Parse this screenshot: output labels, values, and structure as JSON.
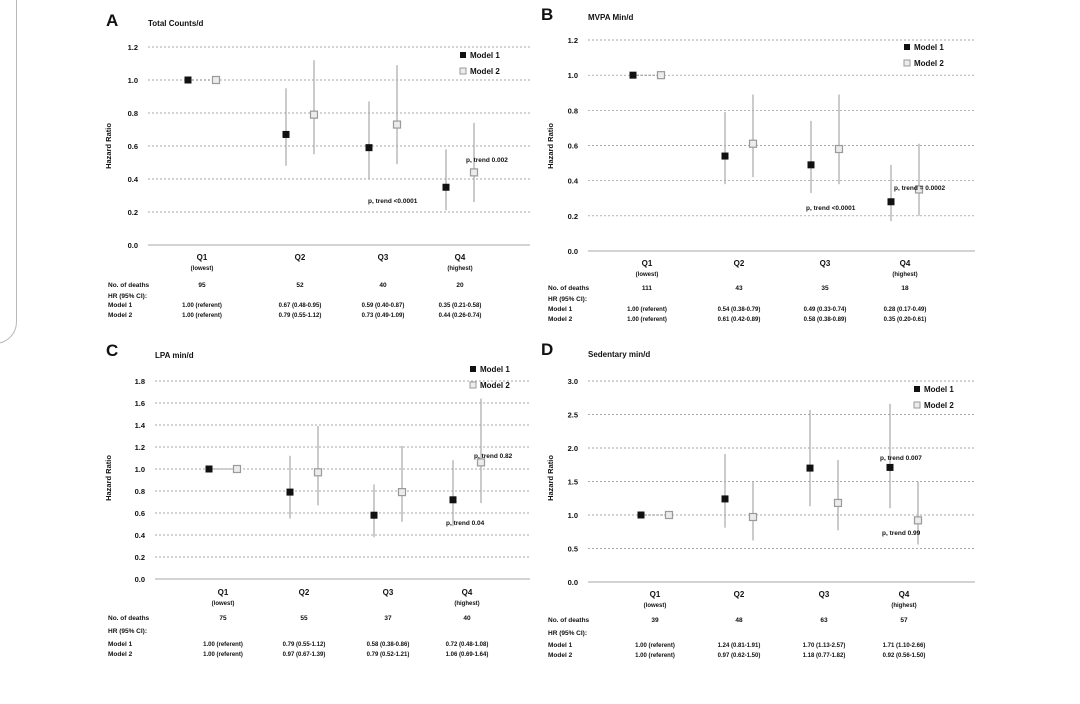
{
  "row_labels": {
    "deaths": "No. of deaths",
    "hr_header": "HR (95% CI):",
    "model1": "Model 1",
    "model2": "Model 2"
  },
  "ylabel": "Hazard Ratio",
  "categories": [
    {
      "name": "Q1",
      "sub": "(lowest)"
    },
    {
      "name": "Q2",
      "sub": ""
    },
    {
      "name": "Q3",
      "sub": ""
    },
    {
      "name": "Q4",
      "sub": "(highest)"
    }
  ],
  "legend": [
    "Model 1",
    "Model 2"
  ],
  "colors": {
    "model1": "#111111",
    "model2": "#9a9a9a",
    "ci": "#a8a8a8",
    "grid": "#8a8a8a"
  },
  "chart_data": [
    {
      "panel": "A",
      "title": "Total Counts/d",
      "type": "scatter",
      "ylim": [
        0,
        1.2
      ],
      "yticks": [
        "0.0",
        "0.2",
        "0.4",
        "0.6",
        "0.8",
        "1.0",
        "1.2"
      ],
      "legend_position": "top-right",
      "series": [
        {
          "name": "Model 1",
          "values": [
            1.0,
            0.67,
            0.59,
            0.35
          ],
          "lower": [
            1.0,
            0.48,
            0.4,
            0.21
          ],
          "upper": [
            1.0,
            0.95,
            0.87,
            0.58
          ]
        },
        {
          "name": "Model 2",
          "values": [
            1.0,
            0.79,
            0.73,
            0.44
          ],
          "lower": [
            1.0,
            0.55,
            0.49,
            0.26
          ],
          "upper": [
            1.0,
            1.12,
            1.09,
            0.74
          ]
        }
      ],
      "annotations": [
        "p, trend <0.0001",
        "p, trend 0.002"
      ],
      "deaths": [
        "95",
        "52",
        "40",
        "20"
      ],
      "model1_text": [
        "1.00 (referent)",
        "0.67 (0.48-0.95)",
        "0.59 (0.40-0.87)",
        "0.35 (0.21-0.58)"
      ],
      "model2_text": [
        "1.00 (referent)",
        "0.79 (0.55-1.12)",
        "0.73 (0.49-1.09)",
        "0.44 (0.26-0.74)"
      ]
    },
    {
      "panel": "B",
      "title": "MVPA Min/d",
      "type": "scatter",
      "ylim": [
        0,
        1.2
      ],
      "yticks": [
        "0.0",
        "0.2",
        "0.4",
        "0.6",
        "0.8",
        "1.0",
        "1.2"
      ],
      "legend_position": "top-right",
      "series": [
        {
          "name": "Model 1",
          "values": [
            1.0,
            0.54,
            0.49,
            0.28
          ],
          "lower": [
            1.0,
            0.38,
            0.33,
            0.17
          ],
          "upper": [
            1.0,
            0.79,
            0.74,
            0.49
          ]
        },
        {
          "name": "Model 2",
          "values": [
            1.0,
            0.61,
            0.58,
            0.35
          ],
          "lower": [
            1.0,
            0.42,
            0.38,
            0.2
          ],
          "upper": [
            1.0,
            0.89,
            0.89,
            0.61
          ]
        }
      ],
      "annotations": [
        "p, trend <0.0001",
        "p, trend = 0.0002"
      ],
      "deaths": [
        "111",
        "43",
        "35",
        "18"
      ],
      "model1_text": [
        "1.00 (referent)",
        "0.54 (0.38-0.79)",
        "0.49 (0.33-0.74)",
        "0.28 (0.17-0.49)"
      ],
      "model2_text": [
        "1.00 (referent)",
        "0.61 (0.42-0.89)",
        "0.58 (0.38-0.89)",
        "0.35 (0.20-0.61)"
      ]
    },
    {
      "panel": "C",
      "title": "LPA min/d",
      "type": "scatter",
      "ylim": [
        0,
        1.8
      ],
      "yticks": [
        "0.0",
        "0.2",
        "0.4",
        "0.6",
        "0.8",
        "1.0",
        "1.2",
        "1.4",
        "1.6",
        "1.8"
      ],
      "legend_position": "top-right",
      "series": [
        {
          "name": "Model 1",
          "values": [
            1.0,
            0.79,
            0.58,
            0.72
          ],
          "lower": [
            1.0,
            0.55,
            0.38,
            0.48
          ],
          "upper": [
            1.0,
            1.12,
            0.86,
            1.08
          ]
        },
        {
          "name": "Model 2",
          "values": [
            1.0,
            0.97,
            0.79,
            1.06
          ],
          "lower": [
            1.0,
            0.67,
            0.52,
            0.69
          ],
          "upper": [
            1.0,
            1.39,
            1.21,
            1.64
          ]
        }
      ],
      "annotations": [
        "p, trend 0.04",
        "p, trend 0.82"
      ],
      "deaths": [
        "75",
        "55",
        "37",
        "40"
      ],
      "model1_text": [
        "1.00 (referent)",
        "0.79 (0.55-1.12)",
        "0.58 (0.38-0.86)",
        "0.72 (0.48-1.08)"
      ],
      "model2_text": [
        "1.00 (referent)",
        "0.97 (0.67-1.39)",
        "0.79 (0.52-1.21)",
        "1.06 (0.69-1.64)"
      ]
    },
    {
      "panel": "D",
      "title": "Sedentary min/d",
      "type": "scatter",
      "ylim": [
        0,
        3.0
      ],
      "yticks": [
        "0.0",
        "0.5",
        "1.0",
        "1.5",
        "2.0",
        "2.5",
        "3.0"
      ],
      "legend_position": "top-right",
      "series": [
        {
          "name": "Model 1",
          "values": [
            1.0,
            1.24,
            1.7,
            1.71
          ],
          "lower": [
            1.0,
            0.81,
            1.13,
            1.1
          ],
          "upper": [
            1.0,
            1.91,
            2.57,
            2.66
          ]
        },
        {
          "name": "Model 2",
          "values": [
            1.0,
            0.97,
            1.18,
            0.92
          ],
          "lower": [
            1.0,
            0.62,
            0.77,
            0.56
          ],
          "upper": [
            1.0,
            1.5,
            1.82,
            1.5
          ]
        }
      ],
      "annotations": [
        "p, trend 0.007",
        "p, trend 0.99"
      ],
      "deaths": [
        "39",
        "48",
        "63",
        "57"
      ],
      "model1_text": [
        "1.00 (referent)",
        "1.24 (0.81-1.91)",
        "1.70 (1.13-2.57)",
        "1.71 (1.10-2.66)"
      ],
      "model2_text": [
        "1.00 (referent)",
        "0.97 (0.62-1.50)",
        "1.18 (0.77-1.82)",
        "0.92 (0.56-1.50)"
      ]
    }
  ]
}
